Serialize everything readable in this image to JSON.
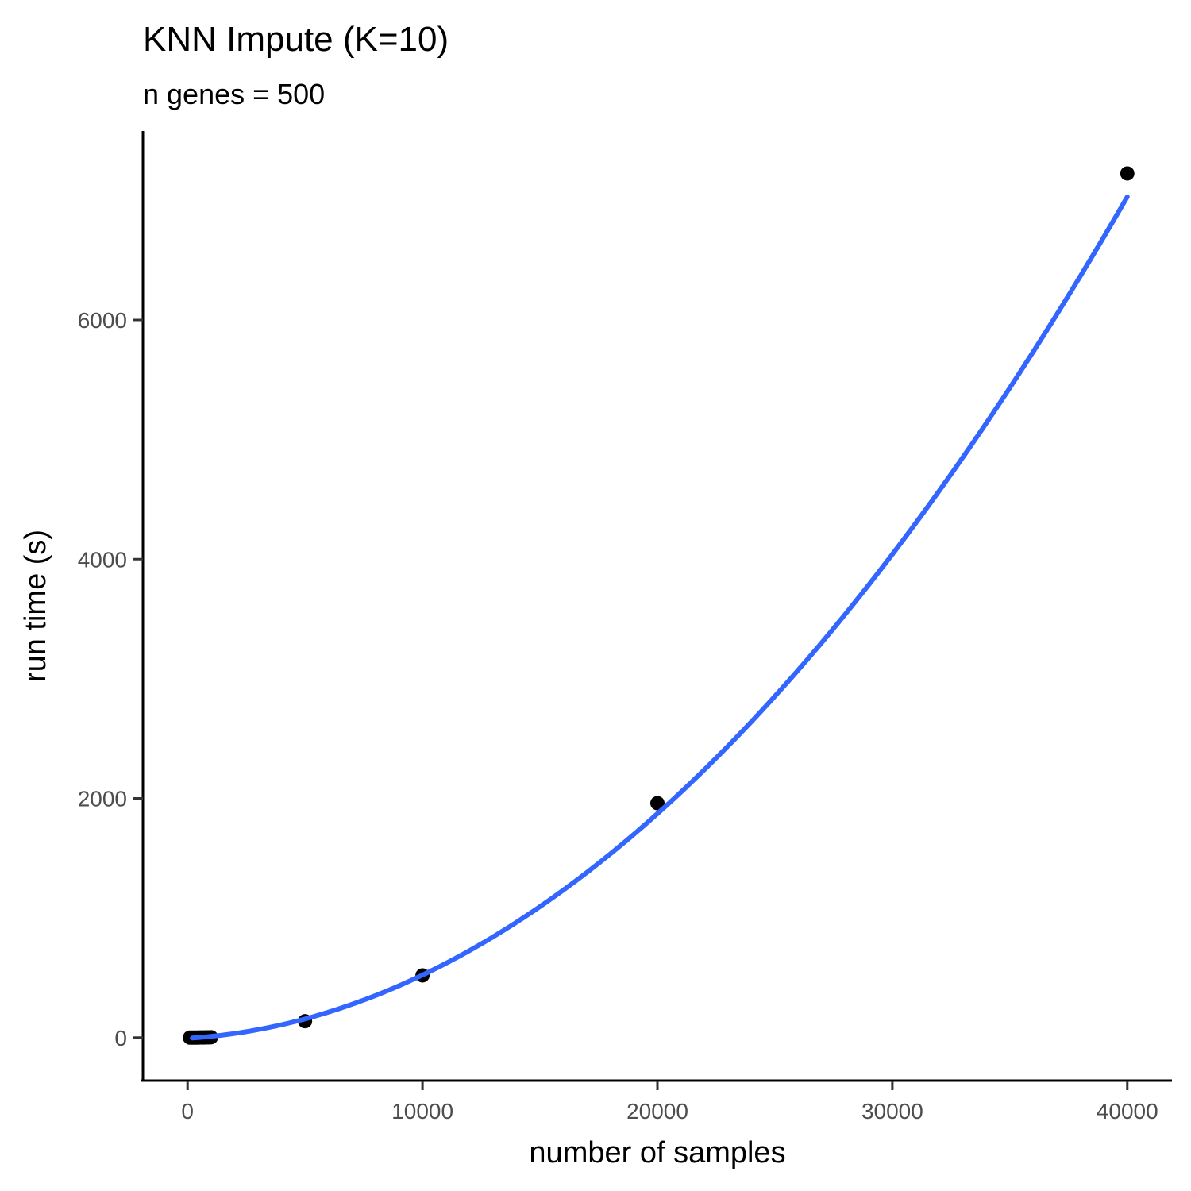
{
  "chart_data": {
    "type": "scatter",
    "title": "KNN Impute (K=10)",
    "subtitle": "n genes = 500",
    "xlabel": "number of samples",
    "ylabel": "run time (s)",
    "xlim": [
      -1900,
      41900
    ],
    "ylim": [
      -360,
      7580
    ],
    "x_ticks": [
      0,
      10000,
      20000,
      30000,
      40000
    ],
    "x_tick_labels": [
      "0",
      "10000",
      "20000",
      "30000",
      "40000"
    ],
    "y_ticks": [
      0,
      2000,
      4000,
      6000
    ],
    "y_tick_labels": [
      "0",
      "2000",
      "4000",
      "6000"
    ],
    "grid": false,
    "points": [
      {
        "x": 100,
        "y": 0
      },
      {
        "x": 200,
        "y": 0
      },
      {
        "x": 300,
        "y": 0
      },
      {
        "x": 400,
        "y": 0
      },
      {
        "x": 500,
        "y": 1
      },
      {
        "x": 600,
        "y": 1
      },
      {
        "x": 700,
        "y": 1
      },
      {
        "x": 800,
        "y": 2
      },
      {
        "x": 900,
        "y": 2
      },
      {
        "x": 1000,
        "y": 3
      },
      {
        "x": 5000,
        "y": 137
      },
      {
        "x": 10000,
        "y": 520
      },
      {
        "x": 20000,
        "y": 1960
      },
      {
        "x": 40000,
        "y": 7225
      }
    ],
    "trend_curve": {
      "x_range": [
        200,
        40000
      ],
      "coefficients": [
        -6,
        0.0119,
        4.1e-06
      ]
    },
    "colors": {
      "points": "#000000",
      "trend": "#3366ff"
    }
  }
}
